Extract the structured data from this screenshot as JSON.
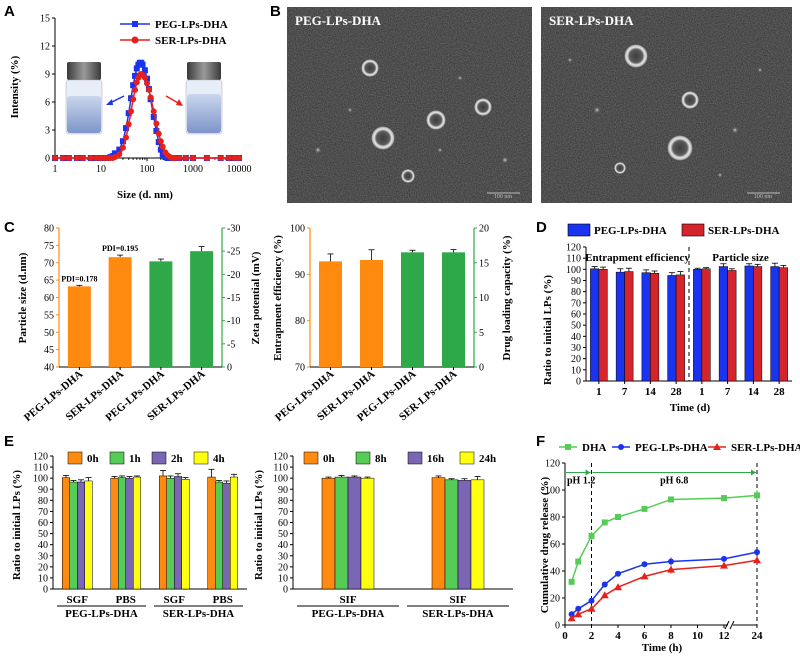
{
  "colors": {
    "blue": "#1a33ee",
    "red": "#e8201a",
    "orange": "#ff8a10",
    "green": "#2fa84a",
    "purple": "#7a66b2",
    "yellow": "#ffff10",
    "lightgreen": "#55cc55",
    "dkred": "#d4252c"
  },
  "panels": {
    "A": {
      "letter": "A",
      "chart_data": {
        "type": "line",
        "xscale": "log",
        "xlabel": "Size (d. nm)",
        "ylabel": "Intensity (%)",
        "xlim": [
          1,
          10000
        ],
        "ylim": [
          0,
          15
        ],
        "xticks": [
          "1",
          "10",
          "100",
          "1000",
          "10000"
        ],
        "yticks": [
          "0",
          "3",
          "6",
          "9",
          "12",
          "15"
        ],
        "series": [
          {
            "name": "PEG-LPs-DHA",
            "color": "blue",
            "marker": "square",
            "x": [
              1,
              1.5,
              2,
              3,
              4,
              6,
              8,
              10,
              12,
              14,
              16,
              18,
              20,
              25,
              30,
              35,
              40,
              45,
              50,
              55,
              60,
              65,
              70,
              75,
              80,
              90,
              100,
              110,
              120,
              140,
              160,
              180,
              200,
              220,
              250,
              280,
              320,
              360,
              400,
              500,
              700,
              1000,
              2000,
              4000,
              6000,
              8000,
              10000
            ],
            "y": [
              0,
              0,
              0,
              0,
              0,
              0,
              0,
              0,
              0,
              0,
              0.1,
              0.2,
              0.5,
              0.9,
              1.8,
              3.2,
              4.8,
              6.4,
              7.8,
              8.8,
              9.6,
              10.0,
              10.2,
              10.2,
              10.0,
              9.4,
              8.5,
              7.4,
              6.3,
              4.4,
              2.9,
              1.7,
              0.9,
              0.4,
              0.1,
              0,
              0,
              0,
              0,
              0,
              0,
              0,
              0,
              0,
              0,
              0,
              0
            ]
          },
          {
            "name": "SER-LPs-DHA",
            "color": "red",
            "marker": "circle",
            "x": [
              1,
              1.5,
              2,
              3,
              4,
              6,
              8,
              10,
              12,
              14,
              16,
              18,
              20,
              25,
              30,
              35,
              40,
              45,
              50,
              55,
              60,
              65,
              70,
              75,
              80,
              90,
              100,
              110,
              120,
              140,
              160,
              180,
              200,
              220,
              250,
              280,
              320,
              360,
              400,
              500,
              700,
              1000,
              2000,
              4000,
              6000,
              8000,
              10000
            ],
            "y": [
              0,
              0,
              0,
              0,
              0,
              0,
              0,
              0,
              0,
              0,
              0,
              0,
              0.1,
              0.4,
              1.1,
              2.2,
              3.6,
              5.0,
              6.3,
              7.3,
              8.1,
              8.6,
              8.9,
              9.0,
              8.9,
              8.6,
              8.0,
              7.3,
              6.5,
              5.0,
              3.7,
              2.6,
              1.8,
              1.2,
              0.6,
              0.3,
              0.1,
              0,
              0,
              0,
              0,
              0,
              0,
              0,
              0,
              0,
              0
            ]
          }
        ]
      }
    },
    "B": {
      "letter": "B",
      "left_label": "PEG-LPs-DHA",
      "right_label": "SER-LPs-DHA",
      "scale_left": "100 nm",
      "scale_right": "100 nm"
    },
    "C": {
      "letter": "C",
      "chart_data": [
        {
          "type": "bar",
          "ylabel_left": "Particle size (d.nm)",
          "ylabel_right": "Zeta potential (mV)",
          "ylim_left": [
            40,
            80
          ],
          "yticks_left": [
            "40",
            "45",
            "50",
            "55",
            "60",
            "65",
            "70",
            "75",
            "80"
          ],
          "ylim_right": [
            0,
            -30
          ],
          "yticks_right": [
            "0",
            "-5",
            "-10",
            "-15",
            "-20",
            "-25",
            "-30"
          ],
          "categories": [
            "PEG-LPs-DHA",
            "SER-LPs-DHA",
            "PEG-LPs-DHA",
            "SER-LPs-DHA"
          ],
          "axis": [
            "left",
            "left",
            "right",
            "right"
          ],
          "values": [
            63.2,
            71.6,
            -22.8,
            -25.0
          ],
          "errors": [
            0.3,
            0.6,
            0.5,
            1.0
          ],
          "bar_colors": [
            "orange",
            "orange",
            "green",
            "green"
          ],
          "annotations": [
            "PDI=0.178",
            "PDI=0.195"
          ]
        },
        {
          "type": "bar",
          "ylabel_left": "Entrapment efficiency (%)",
          "ylabel_right": "Drug loading capacity (%)",
          "ylim_left": [
            70,
            100
          ],
          "yticks_left": [
            "70",
            "80",
            "90",
            "100"
          ],
          "ylim_right": [
            0,
            20
          ],
          "yticks_right": [
            "0",
            "5",
            "10",
            "15",
            "20"
          ],
          "categories": [
            "PEG-LPs-DHA",
            "SER-LPs-DHA",
            "PEG-LPs-DHA",
            "SER-LPs-DHA"
          ],
          "axis": [
            "left",
            "left",
            "right",
            "right"
          ],
          "values": [
            92.8,
            93.1,
            16.5,
            16.5
          ],
          "errors": [
            1.6,
            2.2,
            0.3,
            0.4
          ],
          "bar_colors": [
            "orange",
            "orange",
            "green",
            "green"
          ]
        }
      ]
    },
    "D": {
      "letter": "D",
      "chart_data": {
        "type": "bar",
        "ylabel": "Ratio to initial LPs (%)",
        "xlabel": "Time (d)",
        "ylim": [
          0,
          120
        ],
        "yticks": [
          "0",
          "10",
          "20",
          "30",
          "40",
          "50",
          "60",
          "70",
          "80",
          "90",
          "100",
          "110",
          "120"
        ],
        "categories": [
          "1",
          "7",
          "14",
          "28",
          "1",
          "7",
          "14",
          "28"
        ],
        "section_labels": [
          "Entrapment efficiency",
          "Particle size"
        ],
        "series": [
          {
            "name": "PEG-LPs-DHA",
            "color": "blue",
            "values": [
              100.5,
              97.5,
              97,
              94.5,
              100,
              102.5,
              103,
              102.5
            ],
            "errors": [
              2,
              3,
              2.5,
              2.5,
              1,
              2.5,
              2,
              3
            ]
          },
          {
            "name": "SER-LPs-DHA",
            "color": "dkred",
            "values": [
              100,
              98,
              96.5,
              95,
              100.5,
              99,
              102.5,
              101.5
            ],
            "errors": [
              2,
              3,
              2,
              3,
              1,
              1.5,
              2,
              2
            ]
          }
        ]
      }
    },
    "E": {
      "letter": "E",
      "chart_data": [
        {
          "type": "bar",
          "ylabel": "Ratio to initial LPs (%)",
          "ylim": [
            0,
            120
          ],
          "yticks": [
            "0",
            "10",
            "20",
            "30",
            "40",
            "50",
            "60",
            "70",
            "80",
            "90",
            "100",
            "110",
            "120"
          ],
          "categories": [
            "SGF",
            "PBS",
            "SGF",
            "PBS"
          ],
          "groups": [
            "PEG-LPs-DHA",
            "SER-LPs-DHA"
          ],
          "series": [
            {
              "name": "0h",
              "color": "orange",
              "values": [
                100.5,
                100,
                102,
                101
              ],
              "errors": [
                2,
                1.5,
                5,
                7
              ]
            },
            {
              "name": "1h",
              "color": "lightgreen",
              "values": [
                96.5,
                100.5,
                100,
                96.5
              ],
              "errors": [
                1.5,
                1.5,
                2,
                1.5
              ]
            },
            {
              "name": "2h",
              "color": "purple",
              "values": [
                96.5,
                100,
                101.5,
                95.5
              ],
              "errors": [
                2,
                1.5,
                2.5,
                2
              ]
            },
            {
              "name": "4h",
              "color": "yellow",
              "values": [
                97.5,
                101,
                99,
                101
              ],
              "errors": [
                3,
                1,
                1.5,
                2.5
              ]
            }
          ]
        },
        {
          "type": "bar",
          "ylabel": "Ratio to initial LPs (%)",
          "ylim": [
            0,
            120
          ],
          "yticks": [
            "0",
            "10",
            "20",
            "30",
            "40",
            "50",
            "60",
            "70",
            "80",
            "90",
            "100",
            "110",
            "120"
          ],
          "categories": [
            "SIF",
            "SIF"
          ],
          "groups": [
            "PEG-LPs-DHA",
            "SER-LPs-DHA"
          ],
          "series": [
            {
              "name": "0h",
              "color": "orange",
              "values": [
                100,
                100.5
              ],
              "errors": [
                1,
                1.5
              ]
            },
            {
              "name": "8h",
              "color": "lightgreen",
              "values": [
                101,
                98.5
              ],
              "errors": [
                1.5,
                1
              ]
            },
            {
              "name": "16h",
              "color": "purple",
              "values": [
                101,
                98
              ],
              "errors": [
                1,
                1.5
              ]
            },
            {
              "name": "24h",
              "color": "yellow",
              "values": [
                100,
                98.5
              ],
              "errors": [
                1,
                3
              ]
            }
          ]
        }
      ]
    },
    "F": {
      "letter": "F",
      "chart_data": {
        "type": "line",
        "xlabel": "Time (h)",
        "ylabel": "Cumulative drug release (%)",
        "ylim": [
          0,
          120
        ],
        "yticks": [
          "0",
          "20",
          "40",
          "60",
          "80",
          "100",
          "120"
        ],
        "xticks": [
          "0",
          "2",
          "4",
          "6",
          "8",
          "10",
          "12",
          "24"
        ],
        "phase_labels": [
          "pH 1.2",
          "pH 6.8"
        ],
        "series": [
          {
            "name": "DHA",
            "color": "lightgreen",
            "marker": "square",
            "x": [
              0.5,
              1,
              2,
              3,
              4,
              6,
              8,
              12,
              24
            ],
            "y": [
              32,
              47,
              66,
              76,
              80,
              86,
              93,
              94,
              96
            ],
            "errors": [
              2,
              2,
              3,
              2,
              2,
              2,
              2,
              2,
              4
            ]
          },
          {
            "name": "PEG-LPs-DHA",
            "color": "blue",
            "marker": "circle",
            "x": [
              0.5,
              1,
              2,
              3,
              4,
              6,
              8,
              12,
              24
            ],
            "y": [
              8,
              12,
              18,
              30,
              38,
              45,
              47,
              49,
              54
            ],
            "errors": [
              1,
              1,
              1.5,
              2,
              2,
              2,
              3,
              2,
              2
            ]
          },
          {
            "name": "SER-LPs-DHA",
            "color": "red",
            "marker": "triangle",
            "x": [
              0.5,
              1,
              2,
              3,
              4,
              6,
              8,
              12,
              24
            ],
            "y": [
              5,
              8,
              12,
              22,
              28,
              36,
              41,
              44,
              48
            ],
            "errors": [
              1,
              1,
              1.5,
              2,
              2,
              2,
              3,
              2,
              3
            ]
          }
        ]
      }
    }
  }
}
